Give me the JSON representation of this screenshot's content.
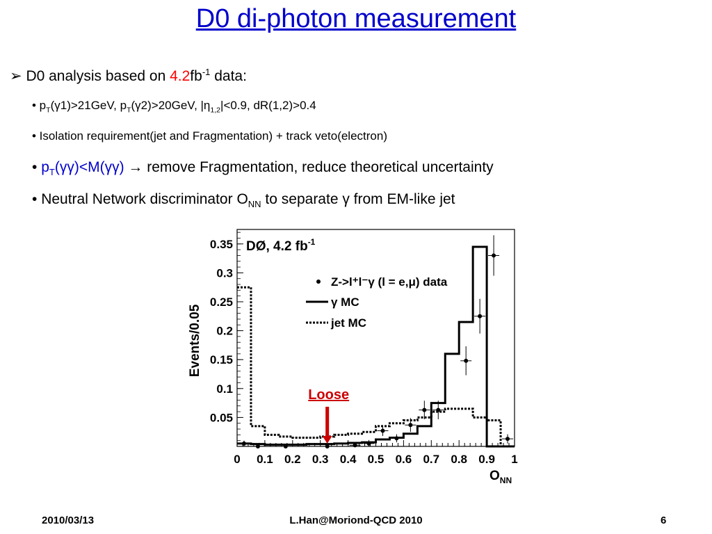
{
  "slide": {
    "title": "D0 di-photon measurement",
    "footer_date": "2010/03/13",
    "footer_center": "L.Han@Moriond-QCD 2010",
    "page_number": "6"
  },
  "bullets": {
    "b1_arrow": "➢",
    "b1_pre": "D0 analysis based on ",
    "b1_val": "4.2",
    "b1_unit": "fb",
    "b1_exp": "-1",
    "b1_post": " data:",
    "b2": {
      "dot": "•",
      "p1": " p",
      "s1": "T",
      "p2": "(γ1)>21GeV, p",
      "s2": "T",
      "p3": "(γ2)>20GeV, |η",
      "s3": "1,2",
      "p4": "|<0.9, dR(1,2)>0.4"
    },
    "b3": {
      "dot": "•",
      "text": " Isolation requirement(jet and Fragmentation)  + track veto(electron)"
    },
    "b4": {
      "dot": "•",
      "p1": " p",
      "s1": "T",
      "p2": "(γγ)<M(γγ)",
      "arrow": " → ",
      "rest": "remove Fragmentation, reduce theoretical uncertainty"
    },
    "b5": {
      "dot": "•",
      "p1": " Neutral Network discriminator O",
      "s1": "NN",
      "p2": " to separate γ from EM-like jet"
    }
  },
  "chart_data": {
    "type": "line",
    "title": "DØ, 4.2 fb",
    "title_sup": "-1",
    "ylabel": "Events/0.05",
    "xlabel": "O",
    "xlabel_sub": "NN",
    "xlim": [
      0,
      1
    ],
    "ylim": [
      0,
      0.375
    ],
    "xticks": [
      "0",
      "0.1",
      "0.2",
      "0.3",
      "0.4",
      "0.5",
      "0.6",
      "0.7",
      "0.8",
      "0.9",
      "1"
    ],
    "yticks": [
      "0.05",
      "0.1",
      "0.15",
      "0.2",
      "0.25",
      "0.3",
      "0.35"
    ],
    "legend_position": "top-right",
    "legend": {
      "data": "Z->l⁺l⁻γ (l = e,μ) data",
      "gamma_mc": "γ MC",
      "jet_mc": "jet MC"
    },
    "annotation": {
      "text": "Loose",
      "x": 0.325,
      "color": "#cc0000"
    },
    "bin_edges": [
      0,
      0.05,
      0.1,
      0.15,
      0.2,
      0.25,
      0.3,
      0.35,
      0.4,
      0.45,
      0.5,
      0.55,
      0.6,
      0.65,
      0.7,
      0.75,
      0.8,
      0.85,
      0.9,
      0.95,
      1.0
    ],
    "series": [
      {
        "name": "γ MC",
        "style": "solid",
        "values": [
          0.005,
          0.004,
          0.003,
          0.003,
          0.003,
          0.004,
          0.004,
          0.005,
          0.006,
          0.007,
          0.012,
          0.015,
          0.022,
          0.035,
          0.075,
          0.16,
          0.215,
          0.345,
          0.0,
          0.0
        ]
      },
      {
        "name": "jet MC",
        "style": "dashed",
        "values": [
          0.275,
          0.035,
          0.02,
          0.017,
          0.015,
          0.015,
          0.017,
          0.02,
          0.022,
          0.025,
          0.035,
          0.04,
          0.045,
          0.05,
          0.06,
          0.065,
          0.065,
          0.05,
          0.045,
          0.0
        ]
      },
      {
        "name": "Z->l⁺l⁻γ (l = e,μ) data",
        "style": "points",
        "x": [
          0.025,
          0.075,
          0.175,
          0.325,
          0.425,
          0.475,
          0.525,
          0.575,
          0.625,
          0.675,
          0.725,
          0.825,
          0.875,
          0.925,
          0.975
        ],
        "y": [
          0.005,
          0.0,
          0.0,
          0.0,
          0.002,
          0.005,
          0.027,
          0.014,
          0.037,
          0.063,
          0.063,
          0.148,
          0.225,
          0.33,
          0.013
        ],
        "err": [
          0.005,
          0.0,
          0.0,
          0.0,
          0.005,
          0.006,
          0.009,
          0.007,
          0.012,
          0.016,
          0.016,
          0.025,
          0.03,
          0.035,
          0.008
        ]
      }
    ]
  }
}
